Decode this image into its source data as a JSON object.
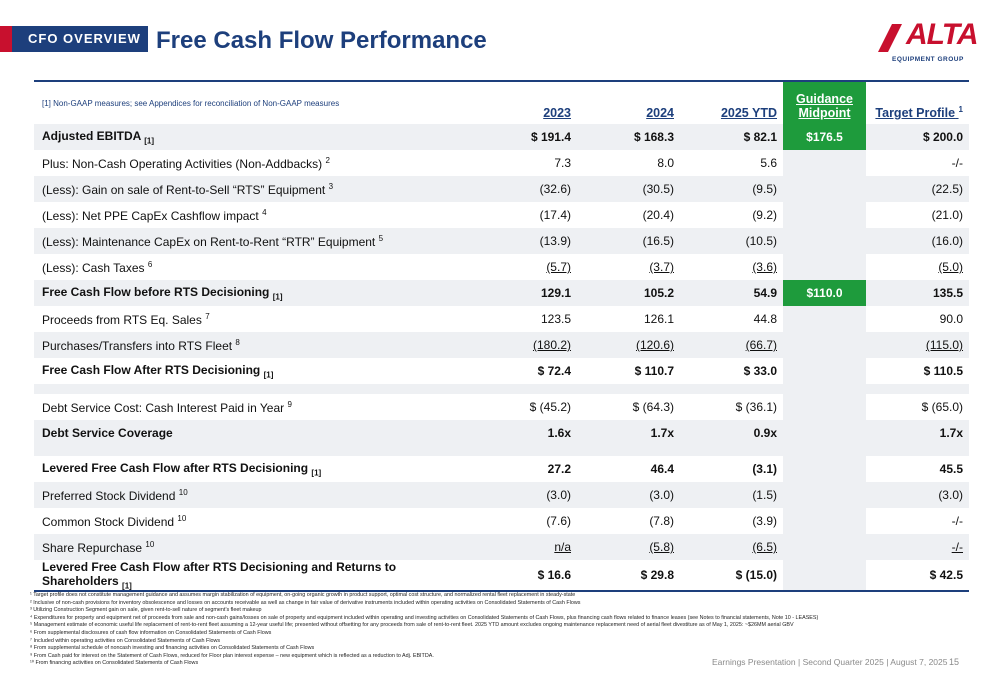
{
  "header": {
    "tag": "CFO OVERVIEW",
    "title": "Free Cash Flow Performance",
    "logo_text": "ALTA",
    "logo_sub": "EQUIPMENT GROUP"
  },
  "table": {
    "note": "[1] Non-GAAP measures; see Appendices for reconciliation of Non-GAAP measures",
    "columns": [
      "2023",
      "2024",
      "2025 YTD",
      "Guidance Midpoint",
      "Target Profile"
    ],
    "guidance_line1": "Guidance",
    "guidance_line2": "Midpoint",
    "target_label": "Target Profile",
    "target_sup": "1",
    "rows": [
      {
        "label": "Adjusted EBITDA",
        "sub": "[1]",
        "sup": "",
        "y2023": "$ 191.4",
        "y2024": "$ 168.3",
        "ytd": "$ 82.1",
        "guidance": "$176.5",
        "target": "$ 200.0"
      },
      {
        "label": "Plus: Non-Cash Operating Activities (Non-Addbacks)",
        "sub": "",
        "sup": "2",
        "y2023": "7.3",
        "y2024": "8.0",
        "ytd": "5.6",
        "guidance": "",
        "target": "-/-"
      },
      {
        "label": "(Less): Gain on sale of Rent-to-Sell “RTS” Equipment",
        "sub": "",
        "sup": "3",
        "y2023": "(32.6)",
        "y2024": "(30.5)",
        "ytd": "(9.5)",
        "guidance": "",
        "target": "(22.5)"
      },
      {
        "label": "(Less): Net PPE CapEx Cashflow impact",
        "sub": "",
        "sup": "4",
        "y2023": "(17.4)",
        "y2024": "(20.4)",
        "ytd": "(9.2)",
        "guidance": "",
        "target": "(21.0)"
      },
      {
        "label": "(Less): Maintenance CapEx on Rent-to-Rent “RTR” Equipment",
        "sub": "",
        "sup": "5",
        "y2023": "(13.9)",
        "y2024": "(16.5)",
        "ytd": "(10.5)",
        "guidance": "",
        "target": "(16.0)"
      },
      {
        "label": "(Less): Cash Taxes",
        "sub": "",
        "sup": "6",
        "y2023": "(5.7)",
        "y2024": "(3.7)",
        "ytd": "(3.6)",
        "guidance": "",
        "target": "(5.0)"
      },
      {
        "label": "Free Cash Flow before RTS Decisioning",
        "sub": "[1]",
        "sup": "",
        "y2023": "129.1",
        "y2024": "105.2",
        "ytd": "54.9",
        "guidance": "$110.0",
        "target": "135.5"
      },
      {
        "label": "Proceeds from RTS Eq. Sales",
        "sub": "",
        "sup": "7",
        "y2023": "123.5",
        "y2024": "126.1",
        "ytd": "44.8",
        "guidance": "",
        "target": "90.0"
      },
      {
        "label": "Purchases/Transfers into RTS Fleet",
        "sub": "",
        "sup": "8",
        "y2023": "(180.2)",
        "y2024": "(120.6)",
        "ytd": "(66.7)",
        "guidance": "",
        "target": "(115.0)"
      },
      {
        "label": "Free Cash Flow After RTS Decisioning",
        "sub": "[1]",
        "sup": "",
        "y2023": "$ 72.4",
        "y2024": "$ 110.7",
        "ytd": "$ 33.0",
        "guidance": "",
        "target": "$ 110.5"
      },
      {
        "label": "Debt Service Cost: Cash Interest Paid in Year",
        "sub": "",
        "sup": "9",
        "y2023": "$ (45.2)",
        "y2024": "$ (64.3)",
        "ytd": "$ (36.1)",
        "guidance": "",
        "target": "$ (65.0)"
      },
      {
        "label": "Debt Service Coverage",
        "sub": "",
        "sup": "",
        "y2023": "1.6x",
        "y2024": "1.7x",
        "ytd": "0.9x",
        "guidance": "",
        "target": "1.7x"
      },
      {
        "label": "Levered Free Cash Flow after RTS Decisioning",
        "sub": "[1]",
        "sup": "",
        "y2023": "27.2",
        "y2024": "46.4",
        "ytd": "(3.1)",
        "guidance": "",
        "target": "45.5"
      },
      {
        "label": "Preferred Stock Dividend",
        "sub": "",
        "sup": "10",
        "y2023": "(3.0)",
        "y2024": "(3.0)",
        "ytd": "(1.5)",
        "guidance": "",
        "target": "(3.0)"
      },
      {
        "label": "Common Stock Dividend",
        "sub": "",
        "sup": "10",
        "y2023": "(7.6)",
        "y2024": "(7.8)",
        "ytd": "(3.9)",
        "guidance": "",
        "target": "-/-"
      },
      {
        "label": "Share Repurchase",
        "sub": "",
        "sup": "10",
        "y2023": "n/a",
        "y2024": "(5.8)",
        "ytd": "(6.5)",
        "guidance": "",
        "target": "-/-"
      },
      {
        "label": "Levered Free Cash Flow after RTS Decisioning and Returns to Shareholders",
        "sub": "[1]",
        "sup": "",
        "y2023": "$ 16.6",
        "y2024": "$ 29.8",
        "ytd": "$ (15.0)",
        "guidance": "",
        "target": "$ 42.5"
      }
    ]
  },
  "footnotes": [
    "¹ Target profile does not constitute management guidance and assumes margin stabilization of equipment, on-going organic growth in product support, optimal cost structure, and normalized rental fleet replacement in steady-state",
    "² Inclusive of non-cash provisions for inventory obsolescence and losses on accounts receivable as well as change in fair value of derivative instruments included within operating activities on Consolidated Statements of Cash Flows",
    "³ Utilizing Construction Segment gain on sale, given rent-to-sell nature of segment’s fleet makeup",
    "⁴ Expenditures for property and equipment net of proceeds from sale and non-cash gains/losses on sale of property and equipment included within operating and investing activities on Consolidated Statements of Cash Flows, plus financing cash flows related to finance leases (see Notes to financial statements, Note 10 - LEASES)",
    "⁵ Management estimate of economic useful life replacement of rent-to-rent fleet assuming a 12-year useful life; presented without offsetting for any proceeds from sale of rent-to-rent fleet. 2025 YTD amount excludes ongoing maintenance replacement need of aerial fleet divestiture as of May 1, 2025: ~$26MM aerial GBV",
    "⁶ From supplemental disclosures of cash flow information on Consolidated Statements of Cash Flows",
    "⁷ Included within operating activities on Consolidated Statements of Cash Flows",
    "⁸ From supplemental schedule of noncash investing and financing activities on Consolidated Statements of Cash Flows",
    "⁹ From Cash paid for interest on the Statement of Cash Flows, reduced for Floor plan interest expense – new equipment which is reflected as a reduction to Adj. EBITDA.",
    "¹⁰ From financing activities on Consolidated Statements of Cash Flows"
  ],
  "footer": {
    "text": "Earnings Presentation | Second Quarter 2025 | August 7, 2025",
    "page": "15"
  },
  "colors": {
    "navy": "#1d3f7c",
    "red": "#c8102e",
    "green": "#1e9b3c",
    "shade": "#eef0f3"
  }
}
